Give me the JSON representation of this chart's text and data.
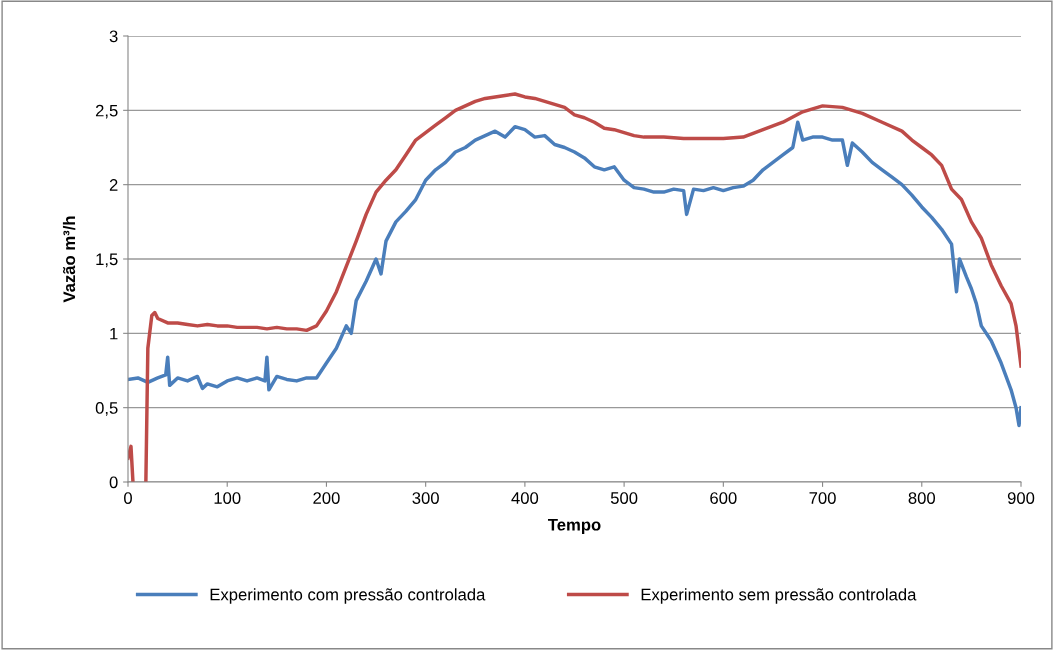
{
  "chart_data": {
    "type": "line",
    "xlabel": "Tempo",
    "ylabel": "Vazão m³/h",
    "xlim": [
      0,
      900
    ],
    "xticks": [
      0,
      100,
      200,
      300,
      400,
      500,
      600,
      700,
      800,
      900
    ],
    "ylim": [
      0,
      3
    ],
    "yticks": [
      0,
      {
        "value": 0.5,
        "label": "0,5"
      },
      1,
      {
        "value": 1.5,
        "label": "1,5"
      },
      2,
      {
        "value": 2.5,
        "label": "2,5"
      },
      3
    ],
    "grid": "y",
    "legend": "bottom",
    "marker": "none",
    "line_style": "solid",
    "series": [
      {
        "name": "Experimento com pressão controlada",
        "color": "#4a7ebb",
        "x": [
          0,
          10,
          20,
          30,
          38,
          40,
          42,
          50,
          60,
          70,
          75,
          80,
          90,
          100,
          110,
          120,
          130,
          138,
          140,
          142,
          150,
          160,
          170,
          180,
          190,
          200,
          210,
          220,
          225,
          230,
          240,
          250,
          255,
          260,
          270,
          280,
          290,
          300,
          310,
          320,
          330,
          340,
          350,
          360,
          370,
          380,
          390,
          400,
          410,
          420,
          430,
          440,
          450,
          460,
          470,
          480,
          490,
          500,
          510,
          520,
          530,
          540,
          550,
          560,
          563,
          570,
          580,
          590,
          600,
          610,
          620,
          630,
          640,
          650,
          660,
          670,
          675,
          680,
          690,
          700,
          710,
          720,
          725,
          730,
          740,
          750,
          760,
          770,
          780,
          790,
          800,
          810,
          820,
          830,
          835,
          838,
          845,
          850,
          855,
          860,
          870,
          880,
          890,
          895,
          898,
          900
        ],
        "values": [
          0.69,
          0.7,
          0.67,
          0.7,
          0.72,
          0.84,
          0.65,
          0.7,
          0.68,
          0.71,
          0.63,
          0.66,
          0.64,
          0.68,
          0.7,
          0.68,
          0.7,
          0.68,
          0.84,
          0.62,
          0.71,
          0.69,
          0.68,
          0.7,
          0.7,
          0.8,
          0.9,
          1.05,
          1.0,
          1.22,
          1.35,
          1.5,
          1.4,
          1.62,
          1.75,
          1.82,
          1.9,
          2.03,
          2.1,
          2.15,
          2.22,
          2.25,
          2.3,
          2.33,
          2.36,
          2.32,
          2.39,
          2.37,
          2.32,
          2.33,
          2.27,
          2.25,
          2.22,
          2.18,
          2.12,
          2.1,
          2.12,
          2.03,
          1.98,
          1.97,
          1.95,
          1.95,
          1.97,
          1.96,
          1.8,
          1.97,
          1.96,
          1.98,
          1.96,
          1.98,
          1.99,
          2.03,
          2.1,
          2.15,
          2.2,
          2.25,
          2.42,
          2.3,
          2.32,
          2.32,
          2.3,
          2.3,
          2.13,
          2.28,
          2.22,
          2.15,
          2.1,
          2.05,
          2.0,
          1.93,
          1.85,
          1.78,
          1.7,
          1.6,
          1.28,
          1.5,
          1.38,
          1.3,
          1.2,
          1.05,
          0.95,
          0.8,
          0.62,
          0.5,
          0.38,
          0.5
        ]
      },
      {
        "name": "Experimento sem pressão controlada",
        "color": "#be4b48",
        "x": [
          0,
          3,
          5,
          10,
          18,
          20,
          24,
          27,
          30,
          40,
          50,
          60,
          70,
          80,
          90,
          100,
          110,
          120,
          130,
          140,
          150,
          160,
          170,
          180,
          190,
          200,
          210,
          220,
          230,
          240,
          250,
          260,
          270,
          280,
          290,
          300,
          310,
          320,
          330,
          340,
          350,
          360,
          370,
          380,
          390,
          400,
          410,
          420,
          430,
          440,
          450,
          460,
          470,
          480,
          490,
          500,
          510,
          520,
          540,
          560,
          580,
          600,
          620,
          640,
          660,
          680,
          700,
          720,
          740,
          760,
          780,
          790,
          800,
          810,
          820,
          830,
          840,
          850,
          860,
          870,
          880,
          890,
          895,
          900
        ],
        "values": [
          0.16,
          0.24,
          0.0,
          null,
          0.0,
          0.9,
          1.12,
          1.14,
          1.1,
          1.07,
          1.07,
          1.06,
          1.05,
          1.06,
          1.05,
          1.05,
          1.04,
          1.04,
          1.04,
          1.03,
          1.04,
          1.03,
          1.03,
          1.02,
          1.05,
          1.15,
          1.28,
          1.45,
          1.62,
          1.8,
          1.95,
          2.03,
          2.1,
          2.2,
          2.3,
          2.35,
          2.4,
          2.45,
          2.5,
          2.53,
          2.56,
          2.58,
          2.59,
          2.6,
          2.61,
          2.59,
          2.58,
          2.56,
          2.54,
          2.52,
          2.47,
          2.45,
          2.42,
          2.38,
          2.37,
          2.35,
          2.33,
          2.32,
          2.32,
          2.31,
          2.31,
          2.31,
          2.32,
          2.37,
          2.42,
          2.49,
          2.53,
          2.52,
          2.48,
          2.42,
          2.36,
          2.3,
          2.25,
          2.2,
          2.13,
          1.97,
          1.9,
          1.75,
          1.64,
          1.46,
          1.32,
          1.2,
          1.05,
          0.78
        ]
      }
    ]
  }
}
